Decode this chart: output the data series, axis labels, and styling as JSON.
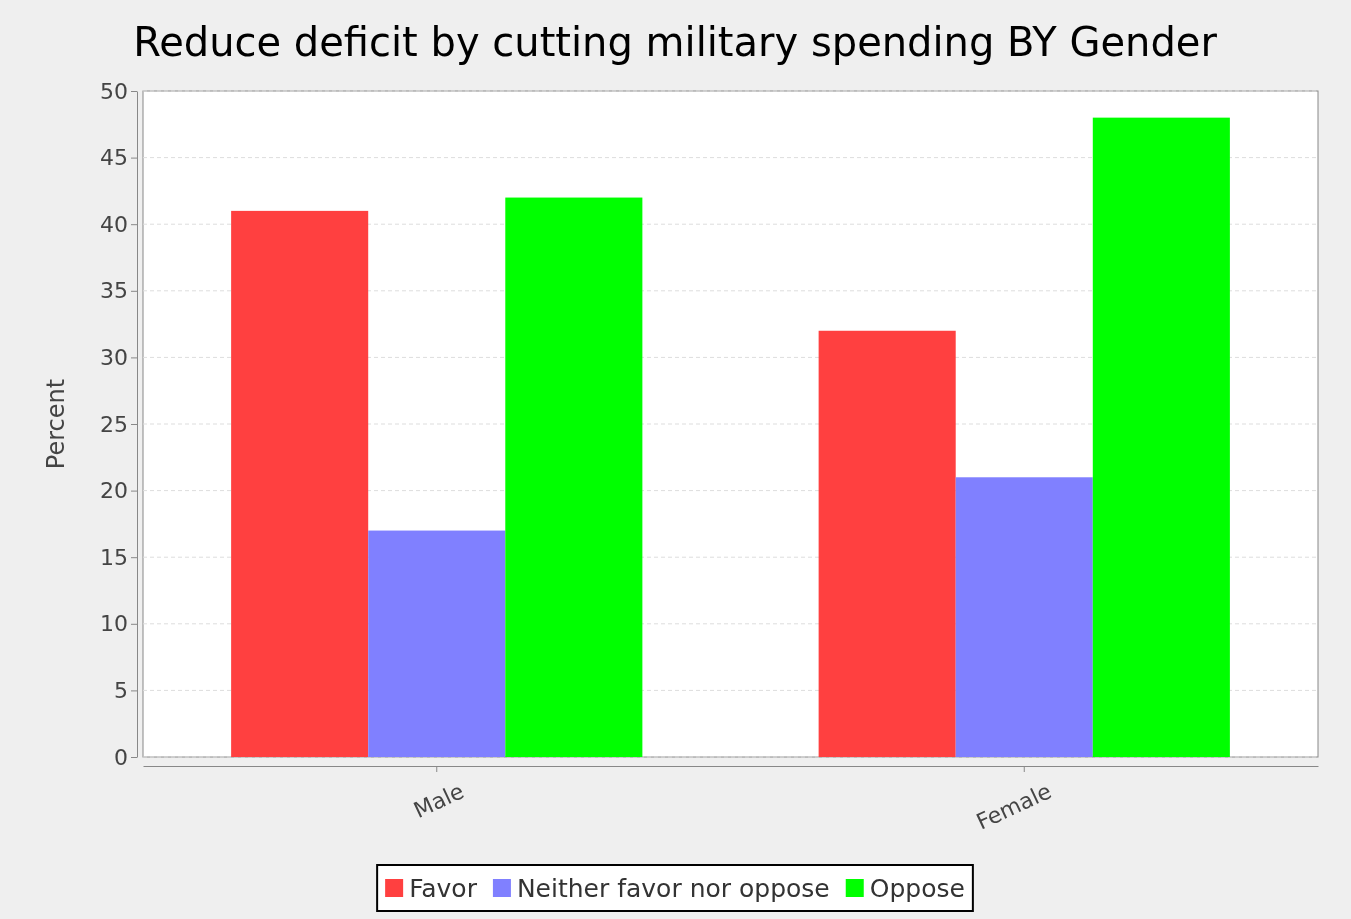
{
  "chart_data": {
    "type": "bar",
    "title": "Reduce deficit by cutting military spending BY Gender",
    "ylabel": "Percent",
    "categories": [
      "Male",
      "Female"
    ],
    "series": [
      {
        "name": "Favor",
        "color": "#ff4040",
        "values": [
          41,
          32
        ]
      },
      {
        "name": "Neither favor nor oppose",
        "color": "#8080ff",
        "values": [
          17,
          21
        ]
      },
      {
        "name": "Oppose",
        "color": "#00ff00",
        "values": [
          42,
          48
        ]
      }
    ],
    "ylim": [
      0,
      50
    ],
    "yticks": [
      0,
      5,
      10,
      15,
      20,
      25,
      30,
      35,
      40,
      45,
      50
    ],
    "grid": "y",
    "legend": "bottom"
  }
}
